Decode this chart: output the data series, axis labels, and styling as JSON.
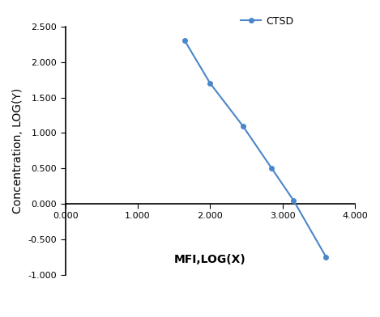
{
  "x": [
    1.65,
    2.0,
    2.45,
    2.85,
    3.15,
    3.6
  ],
  "y": [
    2.3,
    1.7,
    1.1,
    0.5,
    0.05,
    -0.75
  ],
  "line_color": "#4a86c8",
  "marker_color": "#4a86c8",
  "marker_style": "o",
  "marker_size": 4,
  "line_width": 1.5,
  "legend_label": "CTSD",
  "xlabel": "MFI,LOG(X)",
  "ylabel": "Concentration, LOG(Y)",
  "xlim": [
    0.0,
    4.0
  ],
  "ylim": [
    -1.0,
    2.5
  ],
  "xticks": [
    0.0,
    1.0,
    2.0,
    3.0,
    4.0
  ],
  "yticks": [
    -1.0,
    -0.5,
    0.0,
    0.5,
    1.0,
    1.5,
    2.0,
    2.5
  ],
  "background_color": "#ffffff",
  "axis_fontsize": 10,
  "tick_fontsize": 8,
  "legend_fontsize": 9
}
